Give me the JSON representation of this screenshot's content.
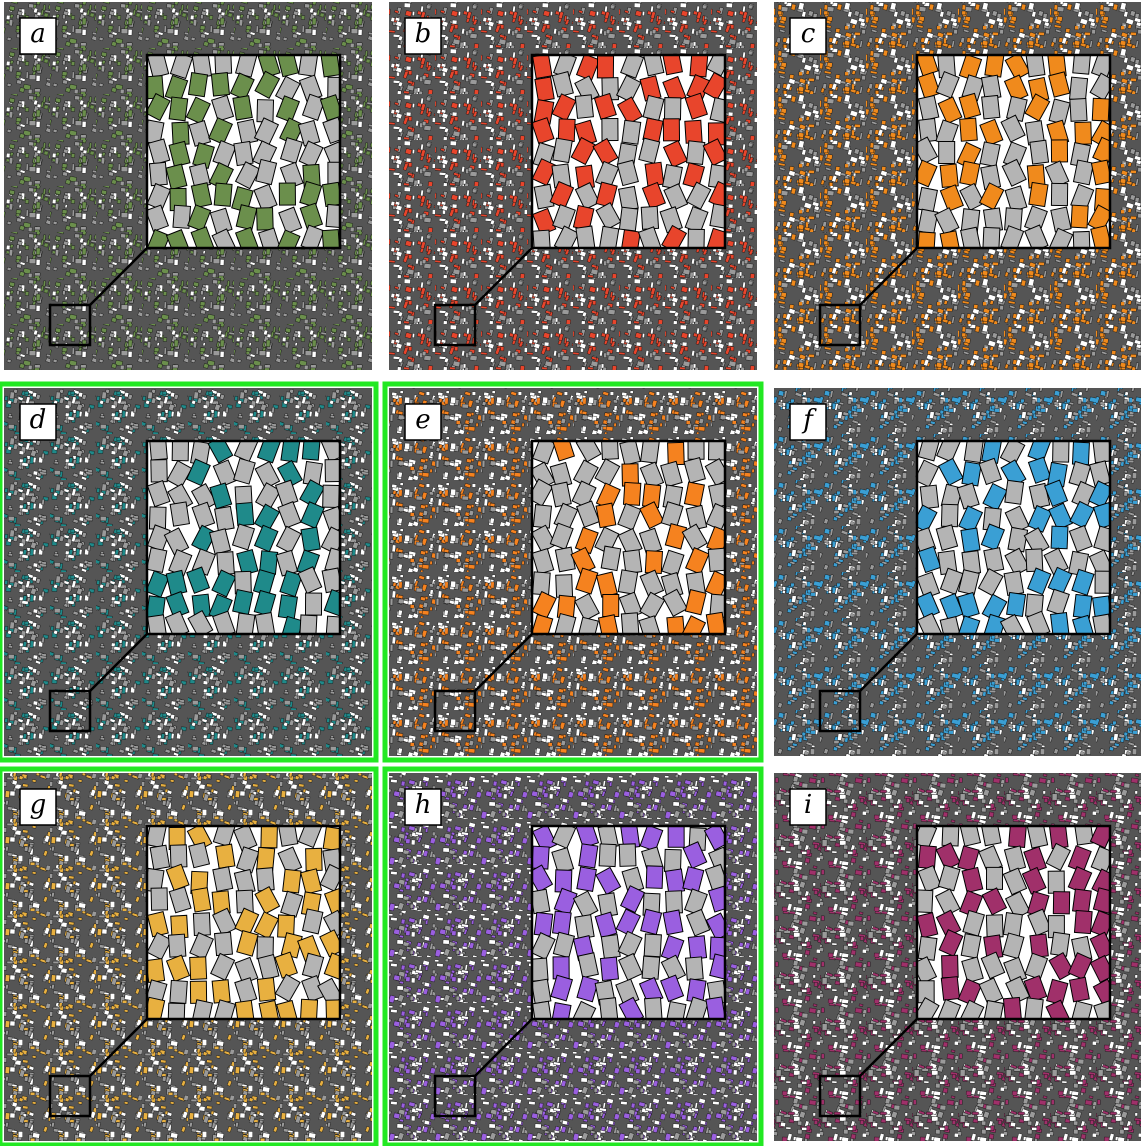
{
  "panels": [
    {
      "label": "a",
      "color": "#6b8f4c",
      "highlighted": false
    },
    {
      "label": "b",
      "color": "#e8452c",
      "highlighted": false
    },
    {
      "label": "c",
      "color": "#f08a1c",
      "highlighted": false
    },
    {
      "label": "d",
      "color": "#1f8a8a",
      "highlighted": true
    },
    {
      "label": "e",
      "color": "#f5821f",
      "highlighted": true
    },
    {
      "label": "f",
      "color": "#3a9fd4",
      "highlighted": false
    },
    {
      "label": "g",
      "color": "#e8b040",
      "highlighted": true
    },
    {
      "label": "h",
      "color": "#9a5fe0",
      "highlighted": true
    },
    {
      "label": "i",
      "color": "#a0306a",
      "highlighted": false
    }
  ]
}
